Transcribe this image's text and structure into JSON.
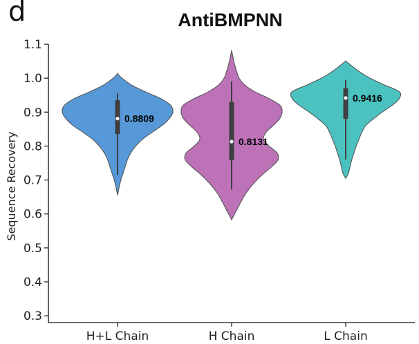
{
  "panel_letter": "d",
  "chart_data": {
    "type": "violin",
    "title": "AntiBMPNN",
    "xlabel": "",
    "ylabel": "Sequence Recovery",
    "ylim": [
      0.28,
      1.1
    ],
    "yticks": [
      0.3,
      0.4,
      0.5,
      0.6,
      0.7,
      0.8,
      0.9,
      1.0,
      1.1
    ],
    "ytick_labels": [
      "0.3",
      "0.4",
      "0.5",
      "0.6",
      "0.7",
      "0.8",
      "0.9",
      "1.0",
      "1.1"
    ],
    "grid": false,
    "categories": [
      "H+L Chain",
      "H Chain",
      "L Chain"
    ],
    "series": [
      {
        "category": "H+L Chain",
        "color": "#5799d8",
        "median": 0.8809,
        "median_label": "0.8809",
        "q1": 0.835,
        "q3": 0.935,
        "whisker_low": 0.715,
        "whisker_high": 0.955,
        "density": [
          [
            0.655,
            0
          ],
          [
            0.68,
            0.03
          ],
          [
            0.7,
            0.06
          ],
          [
            0.72,
            0.1
          ],
          [
            0.74,
            0.14
          ],
          [
            0.76,
            0.18
          ],
          [
            0.78,
            0.24
          ],
          [
            0.8,
            0.33
          ],
          [
            0.82,
            0.45
          ],
          [
            0.84,
            0.62
          ],
          [
            0.86,
            0.8
          ],
          [
            0.88,
            0.93
          ],
          [
            0.9,
            1.0
          ],
          [
            0.92,
            0.96
          ],
          [
            0.94,
            0.78
          ],
          [
            0.96,
            0.5
          ],
          [
            0.98,
            0.25
          ],
          [
            1.0,
            0.08
          ],
          [
            1.013,
            0
          ]
        ]
      },
      {
        "category": "H Chain",
        "color": "#bd72b8",
        "median": 0.8131,
        "median_label": "0.8131",
        "q1": 0.758,
        "q3": 0.93,
        "whisker_low": 0.672,
        "whisker_high": 0.99,
        "density": [
          [
            0.583,
            0
          ],
          [
            0.6,
            0.06
          ],
          [
            0.62,
            0.13
          ],
          [
            0.64,
            0.2
          ],
          [
            0.66,
            0.28
          ],
          [
            0.68,
            0.38
          ],
          [
            0.7,
            0.5
          ],
          [
            0.72,
            0.64
          ],
          [
            0.74,
            0.8
          ],
          [
            0.76,
            0.92
          ],
          [
            0.78,
            0.9
          ],
          [
            0.8,
            0.74
          ],
          [
            0.82,
            0.63
          ],
          [
            0.84,
            0.68
          ],
          [
            0.86,
            0.82
          ],
          [
            0.88,
            0.95
          ],
          [
            0.9,
            1.0
          ],
          [
            0.92,
            0.96
          ],
          [
            0.94,
            0.74
          ],
          [
            0.96,
            0.46
          ],
          [
            0.98,
            0.26
          ],
          [
            1.0,
            0.15
          ],
          [
            1.02,
            0.1
          ],
          [
            1.04,
            0.06
          ],
          [
            1.06,
            0.03
          ],
          [
            1.08,
            0
          ]
        ]
      },
      {
        "category": "L Chain",
        "color": "#4bc2c0",
        "median": 0.9416,
        "median_label": "0.9416",
        "q1": 0.88,
        "q3": 0.97,
        "whisker_low": 0.76,
        "whisker_high": 0.995,
        "density": [
          [
            0.705,
            0
          ],
          [
            0.72,
            0.05
          ],
          [
            0.74,
            0.08
          ],
          [
            0.76,
            0.11
          ],
          [
            0.78,
            0.15
          ],
          [
            0.8,
            0.19
          ],
          [
            0.82,
            0.24
          ],
          [
            0.84,
            0.29
          ],
          [
            0.86,
            0.36
          ],
          [
            0.88,
            0.5
          ],
          [
            0.9,
            0.66
          ],
          [
            0.92,
            0.84
          ],
          [
            0.94,
            0.97
          ],
          [
            0.96,
            0.97
          ],
          [
            0.98,
            0.7
          ],
          [
            1.0,
            0.44
          ],
          [
            1.02,
            0.24
          ],
          [
            1.04,
            0.08
          ],
          [
            1.05,
            0
          ]
        ]
      }
    ]
  }
}
